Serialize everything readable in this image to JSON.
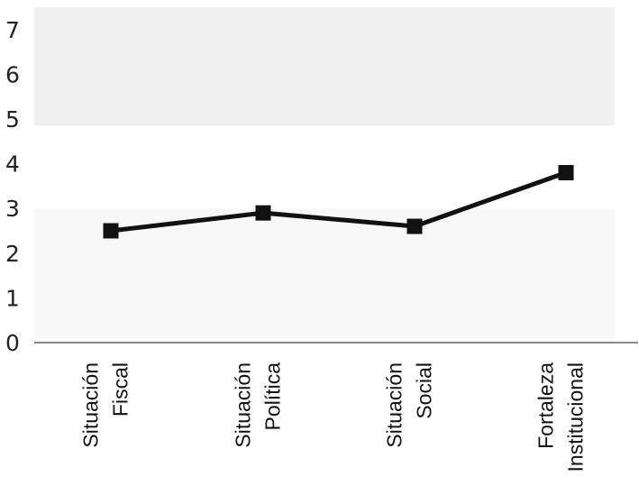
{
  "chart_data": {
    "type": "line",
    "title": "",
    "xlabel": "",
    "ylabel": "",
    "ylim": [
      0,
      7
    ],
    "yticks": [
      "0",
      "1",
      "2",
      "3",
      "4",
      "5",
      "6",
      "7"
    ],
    "categories": [
      [
        "Situación",
        "Fiscal"
      ],
      [
        "Situación",
        "Política"
      ],
      [
        "Situación",
        "Social"
      ],
      [
        "Fortaleza",
        "Institucional"
      ]
    ],
    "series": [
      {
        "values": [
          2.5,
          2.9,
          2.6,
          3.8
        ]
      }
    ],
    "bands": [
      {
        "from": 4.85,
        "to": 7.5,
        "color": "#f0f0f0"
      },
      {
        "from": 0,
        "to": 3.0,
        "color": "#f8f8f8"
      }
    ],
    "line_color": "#111111",
    "axis_color": "#666666"
  }
}
